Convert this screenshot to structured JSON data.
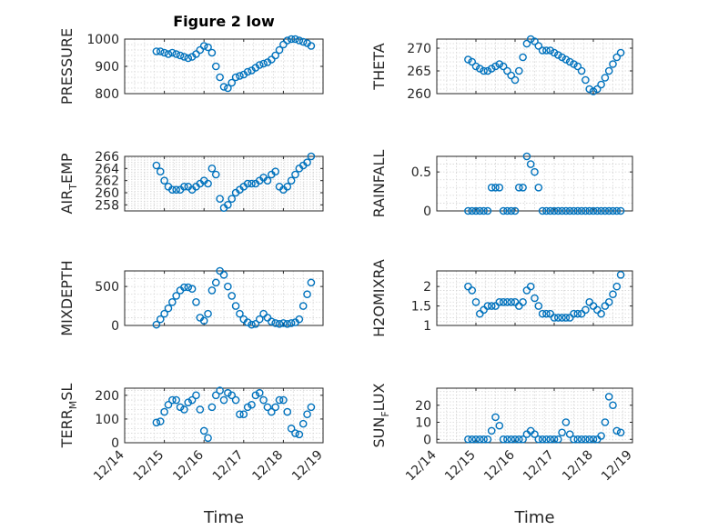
{
  "title": "Figure 2 low",
  "marker_color": "#0072bd",
  "x_tick_labels": [
    "12/14",
    "12/15",
    "12/16",
    "12/17",
    "12/18",
    "12/19"
  ],
  "xlabel": "Time",
  "chart_data": [
    {
      "type": "scatter",
      "ylabel": "PRESSURE",
      "ylim": [
        800,
        1000
      ],
      "yticks": [
        800,
        900,
        1000
      ],
      "grid": true,
      "x": [
        0.8,
        0.9,
        1.0,
        1.1,
        1.2,
        1.3,
        1.4,
        1.5,
        1.6,
        1.7,
        1.8,
        1.9,
        2.0,
        2.1,
        2.2,
        2.3,
        2.4,
        2.5,
        2.6,
        2.7,
        2.8,
        2.9,
        3.0,
        3.1,
        3.2,
        3.3,
        3.4,
        3.5,
        3.6,
        3.7,
        3.8,
        3.9,
        4.0,
        4.1,
        4.2,
        4.3,
        4.4,
        4.5,
        4.6,
        4.7
      ],
      "y": [
        955,
        955,
        950,
        945,
        950,
        945,
        940,
        935,
        930,
        935,
        945,
        960,
        975,
        970,
        950,
        900,
        860,
        825,
        820,
        840,
        860,
        865,
        870,
        880,
        885,
        895,
        905,
        910,
        915,
        925,
        940,
        960,
        980,
        995,
        1000,
        1000,
        995,
        990,
        985,
        975
      ]
    },
    {
      "type": "scatter",
      "ylabel": "THETA",
      "ylim": [
        260,
        272
      ],
      "yticks": [
        260,
        265,
        270
      ],
      "grid": true,
      "x": [
        0.8,
        0.9,
        1.0,
        1.1,
        1.2,
        1.3,
        1.4,
        1.5,
        1.6,
        1.7,
        1.8,
        1.9,
        2.0,
        2.1,
        2.2,
        2.3,
        2.4,
        2.5,
        2.6,
        2.7,
        2.8,
        2.9,
        3.0,
        3.1,
        3.2,
        3.3,
        3.4,
        3.5,
        3.6,
        3.7,
        3.8,
        3.9,
        4.0,
        4.1,
        4.2,
        4.3,
        4.4,
        4.5,
        4.6,
        4.7
      ],
      "y": [
        267.5,
        267,
        266,
        265.5,
        265,
        265,
        265.5,
        266,
        266.5,
        266,
        265,
        264,
        263,
        265,
        268,
        271,
        272,
        271.5,
        270.5,
        269.5,
        269.5,
        269.5,
        269,
        268.5,
        268,
        267.5,
        267,
        266.5,
        266,
        265,
        263,
        261,
        260.5,
        261,
        262,
        263.5,
        265,
        266.5,
        268,
        269
      ]
    },
    {
      "type": "scatter",
      "ylabel": "AIR_TEMP",
      "ylim": [
        257,
        266
      ],
      "yticks": [
        258,
        260,
        262,
        264,
        266
      ],
      "grid": true,
      "x": [
        0.8,
        0.9,
        1.0,
        1.1,
        1.2,
        1.3,
        1.4,
        1.5,
        1.6,
        1.7,
        1.8,
        1.9,
        2.0,
        2.1,
        2.2,
        2.3,
        2.4,
        2.5,
        2.6,
        2.7,
        2.8,
        2.9,
        3.0,
        3.1,
        3.2,
        3.3,
        3.4,
        3.5,
        3.6,
        3.7,
        3.8,
        3.9,
        4.0,
        4.1,
        4.2,
        4.3,
        4.4,
        4.5,
        4.6,
        4.7
      ],
      "y": [
        264.5,
        263.5,
        262,
        261,
        260.5,
        260.5,
        260.5,
        261,
        261,
        260.5,
        261,
        261.5,
        262,
        261.5,
        264,
        263,
        259,
        257.5,
        258,
        259,
        260,
        260.5,
        261,
        261.5,
        261.5,
        261.5,
        262,
        262.5,
        262,
        263,
        263.5,
        261,
        260.5,
        261,
        262,
        263,
        264,
        264.5,
        265,
        266
      ]
    },
    {
      "type": "scatter",
      "ylabel": "RAINFALL",
      "ylim": [
        0,
        0.7
      ],
      "yticks": [
        0,
        0.5
      ],
      "grid": true,
      "x": [
        0.8,
        0.9,
        1.0,
        1.1,
        1.2,
        1.3,
        1.4,
        1.5,
        1.6,
        1.7,
        1.8,
        1.9,
        2.0,
        2.1,
        2.2,
        2.3,
        2.4,
        2.5,
        2.6,
        2.7,
        2.8,
        2.9,
        3.0,
        3.1,
        3.2,
        3.3,
        3.4,
        3.5,
        3.6,
        3.7,
        3.8,
        3.9,
        4.0,
        4.1,
        4.2,
        4.3,
        4.4,
        4.5,
        4.6,
        4.7
      ],
      "y": [
        0,
        0,
        0,
        0,
        0,
        0,
        0.3,
        0.3,
        0.3,
        0,
        0,
        0,
        0,
        0.3,
        0.3,
        0.7,
        0.6,
        0.5,
        0.3,
        0,
        0,
        0,
        0,
        0,
        0,
        0,
        0,
        0,
        0,
        0,
        0,
        0,
        0,
        0,
        0,
        0,
        0,
        0,
        0,
        0
      ]
    },
    {
      "type": "scatter",
      "ylabel": "MIXDEPTH",
      "ylim": [
        0,
        700
      ],
      "yticks": [
        0,
        500
      ],
      "grid": true,
      "x": [
        0.8,
        0.9,
        1.0,
        1.1,
        1.2,
        1.3,
        1.4,
        1.5,
        1.6,
        1.7,
        1.8,
        1.9,
        2.0,
        2.1,
        2.2,
        2.3,
        2.4,
        2.5,
        2.6,
        2.7,
        2.8,
        2.9,
        3.0,
        3.1,
        3.2,
        3.3,
        3.4,
        3.5,
        3.6,
        3.7,
        3.8,
        3.9,
        4.0,
        4.1,
        4.2,
        4.3,
        4.4,
        4.5,
        4.6,
        4.7
      ],
      "y": [
        10,
        80,
        150,
        220,
        300,
        380,
        450,
        490,
        490,
        470,
        300,
        100,
        60,
        150,
        450,
        550,
        700,
        650,
        500,
        380,
        250,
        150,
        80,
        40,
        10,
        20,
        80,
        150,
        100,
        50,
        30,
        20,
        30,
        20,
        30,
        40,
        80,
        250,
        400,
        550
      ]
    },
    {
      "type": "scatter",
      "ylabel": "H2OMIXRA",
      "ylim": [
        1,
        2.4
      ],
      "yticks": [
        1,
        1.5,
        2
      ],
      "grid": true,
      "x": [
        0.8,
        0.9,
        1.0,
        1.1,
        1.2,
        1.3,
        1.4,
        1.5,
        1.6,
        1.7,
        1.8,
        1.9,
        2.0,
        2.1,
        2.2,
        2.3,
        2.4,
        2.5,
        2.6,
        2.7,
        2.8,
        2.9,
        3.0,
        3.1,
        3.2,
        3.3,
        3.4,
        3.5,
        3.6,
        3.7,
        3.8,
        3.9,
        4.0,
        4.1,
        4.2,
        4.3,
        4.4,
        4.5,
        4.6,
        4.7
      ],
      "y": [
        2.0,
        1.9,
        1.6,
        1.3,
        1.4,
        1.5,
        1.5,
        1.5,
        1.6,
        1.6,
        1.6,
        1.6,
        1.6,
        1.5,
        1.6,
        1.9,
        2.0,
        1.7,
        1.5,
        1.3,
        1.3,
        1.3,
        1.2,
        1.2,
        1.2,
        1.2,
        1.2,
        1.3,
        1.3,
        1.3,
        1.4,
        1.6,
        1.5,
        1.4,
        1.3,
        1.5,
        1.6,
        1.8,
        2.0,
        2.3
      ]
    },
    {
      "type": "scatter",
      "ylabel": "TERR_MSL",
      "ylim": [
        0,
        230
      ],
      "yticks": [
        0,
        100,
        200
      ],
      "grid": true,
      "x": [
        0.8,
        0.9,
        1.0,
        1.1,
        1.2,
        1.3,
        1.4,
        1.5,
        1.6,
        1.7,
        1.8,
        1.9,
        2.0,
        2.1,
        2.2,
        2.3,
        2.4,
        2.5,
        2.6,
        2.7,
        2.8,
        2.9,
        3.0,
        3.1,
        3.2,
        3.3,
        3.4,
        3.5,
        3.6,
        3.7,
        3.8,
        3.9,
        4.0,
        4.1,
        4.2,
        4.3,
        4.4,
        4.5,
        4.6,
        4.7
      ],
      "y": [
        85,
        90,
        130,
        160,
        180,
        180,
        150,
        140,
        170,
        180,
        200,
        140,
        50,
        20,
        150,
        200,
        220,
        180,
        210,
        200,
        180,
        120,
        120,
        150,
        160,
        200,
        210,
        180,
        150,
        130,
        150,
        180,
        180,
        130,
        60,
        40,
        35,
        80,
        120,
        150
      ]
    },
    {
      "type": "scatter",
      "ylabel": "SUN_FLUX",
      "ylim": [
        -2,
        30
      ],
      "yticks": [
        0,
        10,
        20
      ],
      "grid": true,
      "x": [
        0.8,
        0.9,
        1.0,
        1.1,
        1.2,
        1.3,
        1.4,
        1.5,
        1.6,
        1.7,
        1.8,
        1.9,
        2.0,
        2.1,
        2.2,
        2.3,
        2.4,
        2.5,
        2.6,
        2.7,
        2.8,
        2.9,
        3.0,
        3.1,
        3.2,
        3.3,
        3.4,
        3.5,
        3.6,
        3.7,
        3.8,
        3.9,
        4.0,
        4.1,
        4.2,
        4.3,
        4.4,
        4.5,
        4.6,
        4.7
      ],
      "y": [
        0,
        0,
        0,
        0,
        0,
        0,
        5,
        13,
        8,
        0,
        0,
        0,
        0,
        0,
        0,
        3,
        5,
        3,
        0,
        0,
        0,
        0,
        0,
        0,
        4,
        10,
        3,
        0,
        0,
        0,
        0,
        0,
        0,
        0,
        2,
        10,
        25,
        20,
        5,
        4
      ]
    }
  ]
}
